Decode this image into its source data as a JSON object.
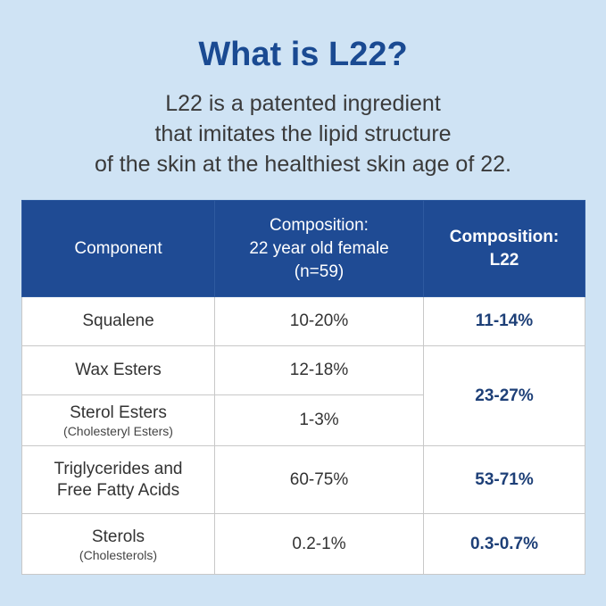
{
  "header": {
    "title": "What is L22?",
    "description": [
      "L22 is a patented ingredient",
      "that imitates the lipid structure",
      "of the skin at the healthiest skin age of 22."
    ]
  },
  "table": {
    "columns": [
      [
        "Component"
      ],
      [
        "Composition:",
        "22 year old female",
        "(n=59)"
      ],
      [
        "Composition:",
        "L22"
      ]
    ],
    "rows": [
      {
        "component": [
          "Squalene"
        ],
        "female": "10-20%",
        "l22": "11-14%"
      },
      {
        "component": [
          "Wax Esters"
        ],
        "female": "12-18%",
        "l22": "23-27%"
      },
      {
        "component": [
          "Sterol Esters"
        ],
        "note": "(Cholesteryl Esters)",
        "female": "1-3%"
      },
      {
        "component": [
          "Triglycerides and",
          "Free Fatty Acids"
        ],
        "female": "60-75%",
        "l22": "53-71%"
      },
      {
        "component": [
          "Sterols"
        ],
        "note": "(Cholesterols)",
        "female": "0.2-1%",
        "l22": "0.3-0.7%"
      }
    ]
  }
}
